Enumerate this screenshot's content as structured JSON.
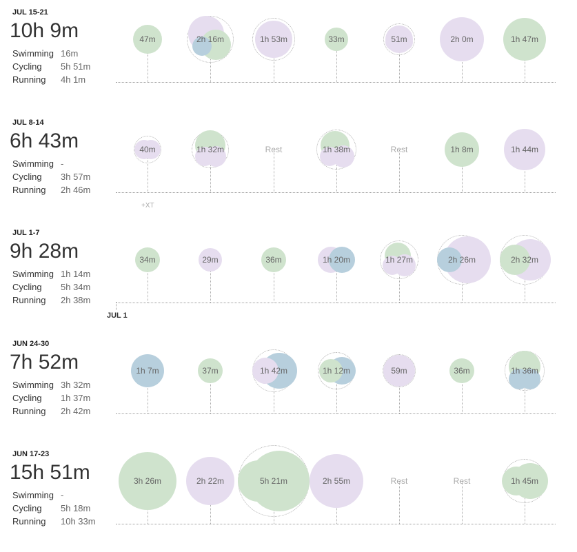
{
  "colors": {
    "cycling": "#cfe3cd",
    "running": "#e6ddef",
    "swimming": "#b7cfdd",
    "rest": "#aaaaaa"
  },
  "stat_labels": {
    "swimming": "Swimming",
    "cycling": "Cycling",
    "running": "Running"
  },
  "month_marker": "JUL 1",
  "weeks": [
    {
      "date": "JUL 15-21",
      "total": "10h 9m",
      "swimming": "16m",
      "cycling": "5h 51m",
      "running": "4h 1m",
      "days": [
        {
          "label": "47m",
          "rest": false
        },
        {
          "label": "2h 16m",
          "rest": false
        },
        {
          "label": "1h 53m",
          "rest": false
        },
        {
          "label": "33m",
          "rest": false
        },
        {
          "label": "51m",
          "rest": false
        },
        {
          "label": "2h 0m",
          "rest": false
        },
        {
          "label": "1h 47m",
          "rest": false
        }
      ]
    },
    {
      "date": "JUL 8-14",
      "total": "6h 43m",
      "swimming": "-",
      "cycling": "3h 57m",
      "running": "2h 46m",
      "days": [
        {
          "label": "40m",
          "rest": false,
          "note": "+XT"
        },
        {
          "label": "1h 32m",
          "rest": false
        },
        {
          "label": "Rest",
          "rest": true
        },
        {
          "label": "1h 38m",
          "rest": false
        },
        {
          "label": "Rest",
          "rest": true
        },
        {
          "label": "1h 8m",
          "rest": false
        },
        {
          "label": "1h 44m",
          "rest": false
        }
      ]
    },
    {
      "date": "JUL 1-7",
      "total": "9h 28m",
      "swimming": "1h 14m",
      "cycling": "5h 34m",
      "running": "2h 38m",
      "days": [
        {
          "label": "34m",
          "rest": false
        },
        {
          "label": "29m",
          "rest": false
        },
        {
          "label": "36m",
          "rest": false
        },
        {
          "label": "1h 20m",
          "rest": false
        },
        {
          "label": "1h 27m",
          "rest": false
        },
        {
          "label": "2h 26m",
          "rest": false
        },
        {
          "label": "2h 32m",
          "rest": false
        }
      ]
    },
    {
      "date": "JUN 24-30",
      "total": "7h 52m",
      "swimming": "3h 32m",
      "cycling": "1h 37m",
      "running": "2h 42m",
      "days": [
        {
          "label": "1h 7m",
          "rest": false
        },
        {
          "label": "37m",
          "rest": false
        },
        {
          "label": "1h 42m",
          "rest": false
        },
        {
          "label": "1h 12m",
          "rest": false
        },
        {
          "label": "59m",
          "rest": false
        },
        {
          "label": "36m",
          "rest": false
        },
        {
          "label": "1h 36m",
          "rest": false
        }
      ]
    },
    {
      "date": "JUN 17-23",
      "total": "15h 51m",
      "swimming": "-",
      "cycling": "5h 18m",
      "running": "10h 33m",
      "days": [
        {
          "label": "3h 26m",
          "rest": false
        },
        {
          "label": "2h 22m",
          "rest": false
        },
        {
          "label": "5h 21m",
          "rest": false
        },
        {
          "label": "2h 55m",
          "rest": false
        },
        {
          "label": "Rest",
          "rest": true
        },
        {
          "label": "Rest",
          "rest": true
        },
        {
          "label": "1h 45m",
          "rest": false
        }
      ]
    }
  ]
}
